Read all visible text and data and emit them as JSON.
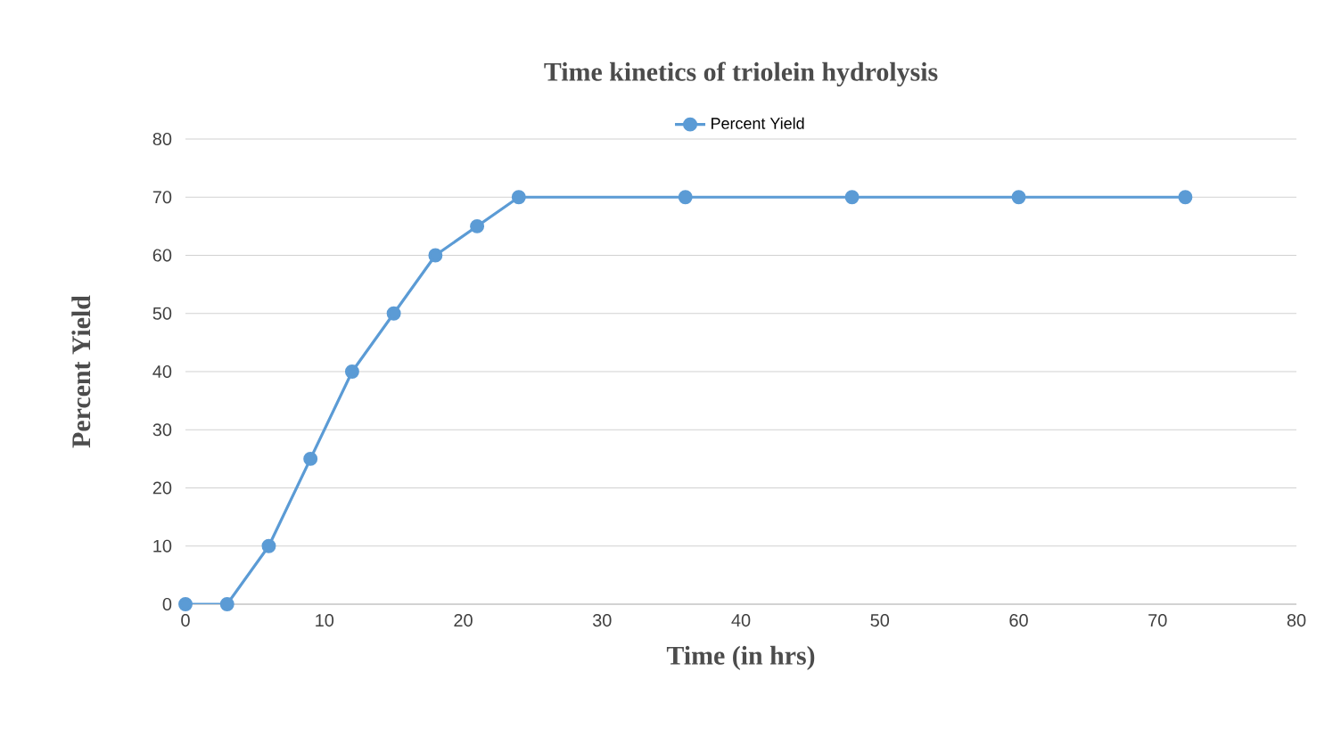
{
  "chart_data": {
    "type": "line",
    "title": "Time kinetics of triolein hydrolysis",
    "xlabel": "Time (in hrs)",
    "ylabel": "Percent Yield",
    "x": [
      0,
      3,
      6,
      9,
      12,
      15,
      18,
      21,
      24,
      36,
      48,
      60,
      72
    ],
    "series": [
      {
        "name": "Percent Yield",
        "color": "#5b9bd5",
        "values": [
          0,
          0,
          10,
          25,
          40,
          50,
          60,
          65,
          70,
          70,
          70,
          70,
          70
        ]
      }
    ],
    "xlim": [
      0,
      80
    ],
    "xticks": [
      0,
      10,
      20,
      30,
      40,
      50,
      60,
      70,
      80
    ],
    "ylim": [
      0,
      80
    ],
    "yticks": [
      0,
      10,
      20,
      30,
      40,
      50,
      60,
      70,
      80
    ],
    "grid": "y",
    "legend": "top",
    "marker": "circle",
    "line_style": "solid"
  }
}
